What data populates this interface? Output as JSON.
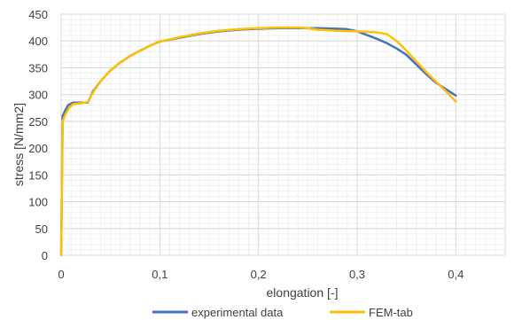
{
  "chart_data": {
    "type": "line",
    "xlabel": "elongation [-]",
    "ylabel": "stress [N/mm2]",
    "xlim": [
      0,
      0.45
    ],
    "ylim": [
      0,
      450
    ],
    "x_ticks": [
      0,
      0.1,
      0.2,
      0.3,
      0.4
    ],
    "x_tick_labels": [
      "0",
      "0,1",
      "0,2",
      "0,3",
      "0,4"
    ],
    "y_ticks": [
      0,
      50,
      100,
      150,
      200,
      250,
      300,
      350,
      400,
      450
    ],
    "y_tick_labels": [
      "0",
      "50",
      "100",
      "150",
      "200",
      "250",
      "300",
      "350",
      "400",
      "450"
    ],
    "grid": true,
    "legend_position": "bottom",
    "series": [
      {
        "name": "experimental data",
        "color": "#4472C4",
        "points": [
          [
            0,
            0
          ],
          [
            0.0015,
            260
          ],
          [
            0.004,
            270
          ],
          [
            0.007,
            280
          ],
          [
            0.012,
            285
          ],
          [
            0.02,
            285
          ],
          [
            0.027,
            285
          ],
          [
            0.032,
            305
          ],
          [
            0.04,
            325
          ],
          [
            0.05,
            345
          ],
          [
            0.06,
            360
          ],
          [
            0.07,
            372
          ],
          [
            0.08,
            382
          ],
          [
            0.09,
            391
          ],
          [
            0.1,
            399
          ],
          [
            0.12,
            406
          ],
          [
            0.14,
            413
          ],
          [
            0.16,
            418
          ],
          [
            0.18,
            421
          ],
          [
            0.2,
            423
          ],
          [
            0.22,
            424
          ],
          [
            0.24,
            424
          ],
          [
            0.26,
            424
          ],
          [
            0.28,
            423
          ],
          [
            0.29,
            422
          ],
          [
            0.3,
            418
          ],
          [
            0.31,
            411
          ],
          [
            0.32,
            404
          ],
          [
            0.33,
            396
          ],
          [
            0.34,
            386
          ],
          [
            0.35,
            374
          ],
          [
            0.36,
            356
          ],
          [
            0.37,
            338
          ],
          [
            0.38,
            322
          ],
          [
            0.39,
            310
          ],
          [
            0.4,
            298
          ]
        ]
      },
      {
        "name": "FEM-tab",
        "color": "#FFC000",
        "points": [
          [
            0,
            0
          ],
          [
            0.0015,
            250
          ],
          [
            0.004,
            262
          ],
          [
            0.008,
            275
          ],
          [
            0.012,
            282
          ],
          [
            0.02,
            284
          ],
          [
            0.027,
            286
          ],
          [
            0.032,
            303
          ],
          [
            0.04,
            325
          ],
          [
            0.05,
            345
          ],
          [
            0.06,
            360
          ],
          [
            0.07,
            372
          ],
          [
            0.08,
            382
          ],
          [
            0.09,
            391
          ],
          [
            0.1,
            399
          ],
          [
            0.12,
            407
          ],
          [
            0.14,
            414
          ],
          [
            0.16,
            419
          ],
          [
            0.18,
            422
          ],
          [
            0.2,
            424
          ],
          [
            0.22,
            425
          ],
          [
            0.24,
            425
          ],
          [
            0.25,
            424
          ],
          [
            0.26,
            421
          ],
          [
            0.28,
            419
          ],
          [
            0.3,
            418
          ],
          [
            0.32,
            416
          ],
          [
            0.33,
            413
          ],
          [
            0.34,
            400
          ],
          [
            0.35,
            382
          ],
          [
            0.36,
            362
          ],
          [
            0.37,
            342
          ],
          [
            0.38,
            324
          ],
          [
            0.39,
            306
          ],
          [
            0.4,
            287
          ]
        ]
      }
    ]
  }
}
